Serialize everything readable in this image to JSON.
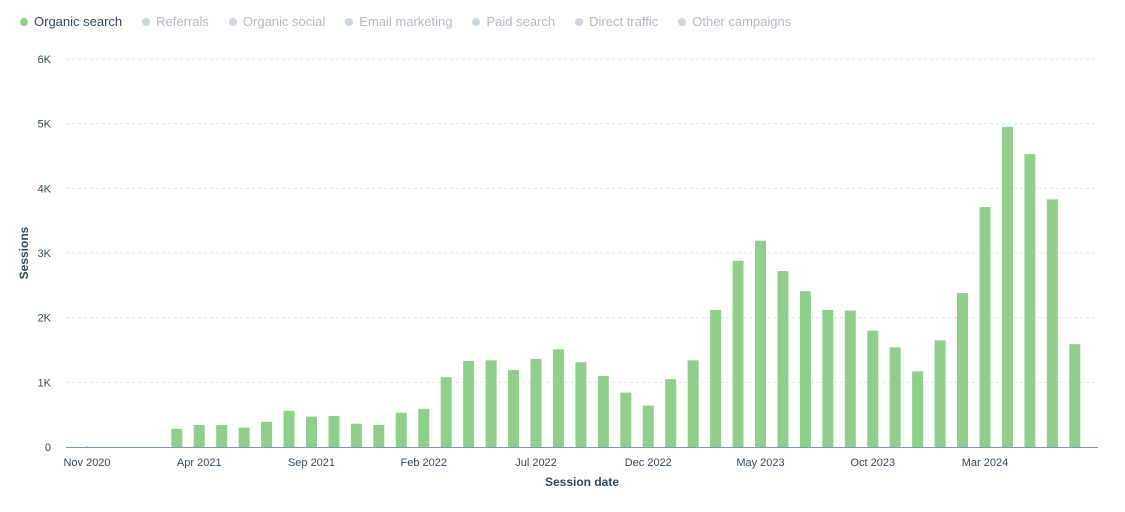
{
  "legend": [
    {
      "label": "Organic search",
      "active": true,
      "color": "#8fcf8b"
    },
    {
      "label": "Referrals",
      "active": false,
      "color": "#cbd6e2"
    },
    {
      "label": "Organic social",
      "active": false,
      "color": "#cbd6e2"
    },
    {
      "label": "Email marketing",
      "active": false,
      "color": "#cbd6e2"
    },
    {
      "label": "Paid search",
      "active": false,
      "color": "#cbd6e2"
    },
    {
      "label": "Direct traffic",
      "active": false,
      "color": "#cbd6e2"
    },
    {
      "label": "Other campaigns",
      "active": false,
      "color": "#cbd6e2"
    }
  ],
  "colors": {
    "active_text": "#33475b",
    "inactive_text": "#b0b8c1",
    "bar": "#8fcf8b",
    "grid": "#dfe3eb",
    "axis": "#7c98b6"
  },
  "chart_data": {
    "type": "bar",
    "xlabel": "Session date",
    "ylabel": "Sessions",
    "ylim": [
      0,
      6000
    ],
    "yticks": [
      0,
      1000,
      2000,
      3000,
      4000,
      5000,
      6000
    ],
    "ytick_labels": [
      "0",
      "1K",
      "2K",
      "3K",
      "4K",
      "5K",
      "6K"
    ],
    "xtick_labels": [
      "Nov 2020",
      "Apr 2021",
      "Sep 2021",
      "Feb 2022",
      "Jul 2022",
      "Dec 2022",
      "May 2023",
      "Oct 2023",
      "Mar 2024"
    ],
    "grid": true,
    "legend_position": "top-left",
    "categories": [
      "Nov 2020",
      "Dec 2020",
      "Jan 2021",
      "Feb 2021",
      "Mar 2021",
      "Apr 2021",
      "May 2021",
      "Jun 2021",
      "Jul 2021",
      "Aug 2021",
      "Sep 2021",
      "Oct 2021",
      "Nov 2021",
      "Dec 2021",
      "Jan 2022",
      "Feb 2022",
      "Mar 2022",
      "Apr 2022",
      "May 2022",
      "Jun 2022",
      "Jul 2022",
      "Aug 2022",
      "Sep 2022",
      "Oct 2022",
      "Nov 2022",
      "Dec 2022",
      "Jan 2023",
      "Feb 2023",
      "Mar 2023",
      "Apr 2023",
      "May 2023",
      "Jun 2023",
      "Jul 2023",
      "Aug 2023",
      "Sep 2023",
      "Oct 2023",
      "Nov 2023",
      "Dec 2023",
      "Jan 2024",
      "Feb 2024",
      "Mar 2024",
      "Apr 2024",
      "May 2024",
      "Jun 2024",
      "Jul 2024"
    ],
    "series": [
      {
        "name": "Organic search",
        "values": [
          15,
          0,
          0,
          0,
          280,
          340,
          340,
          300,
          390,
          560,
          470,
          480,
          360,
          340,
          530,
          590,
          1080,
          1330,
          1340,
          1190,
          1360,
          1510,
          1310,
          1100,
          840,
          640,
          1050,
          1340,
          2120,
          2880,
          3190,
          2720,
          2410,
          2120,
          2110,
          1800,
          1540,
          1170,
          1650,
          2380,
          3710,
          4950,
          4530,
          3830,
          1590
        ]
      }
    ]
  }
}
